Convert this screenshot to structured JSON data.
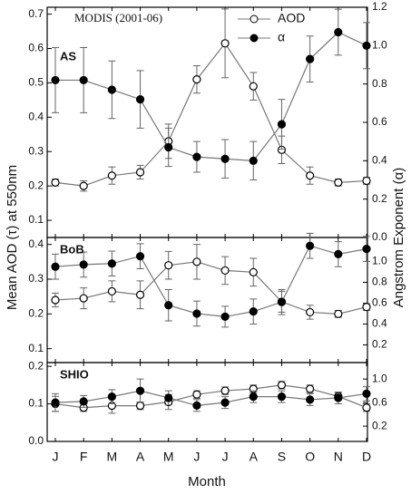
{
  "chart_data": [
    {
      "type": "line",
      "title": "AS",
      "annotation": "MODIS (2001-06)",
      "ylabel": "Mean AOD (τ) at 550nm",
      "y2label": "Angstrom Exponent (α)",
      "ylim": [
        0.05,
        0.72
      ],
      "yticks": [
        0.1,
        0.2,
        0.3,
        0.4,
        0.5,
        0.6,
        0.7
      ],
      "y2lim": [
        0,
        1.2
      ],
      "y2ticks": [
        {
          "value": 0,
          "label": "0.0"
        },
        0.2,
        0.4,
        0.6,
        0.8,
        {
          "value": 1,
          "label": "1.0"
        },
        1.2
      ],
      "series": [
        {
          "name": "AOD",
          "color": "#000000",
          "marker": "open",
          "values": [
            0.21,
            0.2,
            0.23,
            0.24,
            0.33,
            0.51,
            0.615,
            0.49,
            0.305,
            0.23,
            0.21,
            0.215
          ],
          "errors": [
            0.01,
            0.015,
            0.025,
            0.02,
            0.05,
            0.04,
            0.1,
            0.04,
            0.04,
            0.025,
            0.01,
            0.01
          ]
        },
        {
          "name": "α",
          "color": "#000000",
          "marker": "filled",
          "axis": "y2",
          "values": [
            0.82,
            0.82,
            0.77,
            0.72,
            0.47,
            0.42,
            0.41,
            0.4,
            0.59,
            0.93,
            1.07,
            1.0
          ],
          "errors": [
            0.17,
            0.17,
            0.15,
            0.15,
            0.1,
            0.08,
            0.1,
            0.1,
            0.13,
            0.12,
            0.12,
            0.12
          ]
        }
      ]
    },
    {
      "type": "line",
      "title": "BoB",
      "ylim": [
        0.06,
        0.42
      ],
      "yticks": [
        0.1,
        0.2,
        0.3,
        0.4
      ],
      "y2lim": [
        0.03,
        1.23
      ],
      "y2ticks": [
        0.2,
        0.4,
        0.6,
        0.8,
        {
          "value": 1,
          "label": "1.0"
        }
      ],
      "series": [
        {
          "color": "#000000",
          "marker": "open",
          "values": [
            0.24,
            0.245,
            0.265,
            0.255,
            0.34,
            0.35,
            0.325,
            0.32,
            0.235,
            0.205,
            0.2,
            0.22
          ],
          "errors": [
            0.02,
            0.03,
            0.03,
            0.04,
            0.04,
            0.05,
            0.04,
            0.04,
            0.03,
            0.02,
            0.01,
            0.01
          ]
        },
        {
          "color": "#000000",
          "marker": "filled",
          "axis": "y2",
          "values": [
            0.95,
            0.97,
            0.98,
            1.05,
            0.58,
            0.5,
            0.47,
            0.52,
            0.61,
            1.15,
            1.07,
            1.12
          ],
          "errors": [
            0.12,
            0.12,
            0.12,
            0.12,
            0.15,
            0.12,
            0.1,
            0.12,
            0.12,
            0.12,
            0.12,
            0.12
          ]
        }
      ]
    },
    {
      "type": "line",
      "title": "SHIO",
      "xlabel": "Month",
      "categories": [
        "J",
        "F",
        "M",
        "A",
        "M",
        "J",
        "J",
        "A",
        "S",
        "O",
        "N",
        "D"
      ],
      "ylim": [
        0,
        0.21
      ],
      "yticks": [
        {
          "value": 0,
          "label": "0.0"
        },
        0.1,
        0.2
      ],
      "y2lim": [
        -0.06,
        1.28
      ],
      "y2ticks": [
        0.2,
        0.6,
        {
          "value": 1,
          "label": "1.0"
        }
      ],
      "series": [
        {
          "color": "#000000",
          "marker": "open",
          "values": [
            0.1,
            0.09,
            0.095,
            0.095,
            0.105,
            0.125,
            0.135,
            0.14,
            0.15,
            0.14,
            0.12,
            0.09
          ],
          "errors": [
            0.02,
            0.01,
            0.02,
            0.01,
            0.02,
            0.01,
            0.01,
            0.01,
            0.01,
            0.01,
            0.01,
            0.01
          ]
        },
        {
          "color": "#000000",
          "marker": "filled",
          "axis": "y2",
          "values": [
            0.6,
            0.62,
            0.7,
            0.8,
            0.68,
            0.55,
            0.6,
            0.7,
            0.7,
            0.65,
            0.68,
            0.75
          ],
          "errors": [
            0.15,
            0.1,
            0.12,
            0.2,
            0.12,
            0.1,
            0.1,
            0.1,
            0.1,
            0.1,
            0.1,
            0.12
          ]
        }
      ]
    }
  ]
}
